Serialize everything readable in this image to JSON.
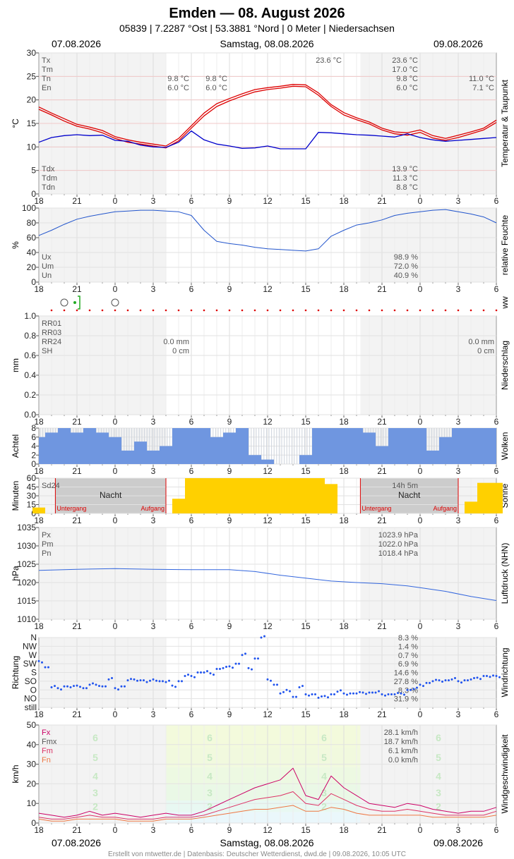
{
  "header": {
    "title": "Emden  —  08. August 2026",
    "subtitle": "05839  |  7.2287 °Ost  |  53.3881 °Nord  |  0 Meter  |  Niedersachsen",
    "date_left": "07.08.2026",
    "date_center": "Samstag, 08.08.2026",
    "date_right": "09.08.2026"
  },
  "footer": "Erstellt von mtwetter.de | Datenbasis: Deutscher Wetterdienst, dwd.de | 09.08.2026, 10:05 UTC",
  "x_axis": {
    "range_hours": [
      18,
      54
    ],
    "tick_labels": [
      "18",
      "21",
      "0",
      "3",
      "6",
      "9",
      "12",
      "15",
      "18",
      "21",
      "0",
      "3",
      "6"
    ]
  },
  "chart_data": [
    {
      "id": "temperature",
      "type": "line",
      "ylabel": "°C",
      "side_label": "Temperatur & Taupunkt",
      "ylim": [
        0,
        30
      ],
      "yticks": [
        0,
        5,
        10,
        15,
        20,
        25,
        30
      ],
      "stats_top": [
        {
          "label": "Tx",
          "right": "23.6 °C"
        },
        {
          "label": "Tm",
          "right": "17.0 °C"
        },
        {
          "label": "Tn",
          "mid1": "9.8 °C",
          "mid2": "9.8 °C",
          "right": "9.8 °C",
          "far": "11.0 °C"
        },
        {
          "label": "En",
          "mid1": "6.0 °C",
          "mid2": "6.0 °C",
          "right": "6.0 °C",
          "far": "7.1 °C"
        }
      ],
      "peak_label": "23.6 °C",
      "stats_bottom": [
        {
          "label": "Tdx",
          "right": "13.9 °C"
        },
        {
          "label": "Tdm",
          "right": "11.3 °C"
        },
        {
          "label": "Tdn",
          "right": "8.8 °C"
        }
      ],
      "series": [
        {
          "name": "Tx",
          "color": "#dd0000",
          "x": [
            18,
            19,
            20,
            21,
            22,
            23,
            24,
            25,
            26,
            27,
            28,
            29,
            30,
            31,
            32,
            33,
            34,
            35,
            36,
            37,
            38,
            39,
            40,
            41,
            42,
            43,
            44,
            45,
            46,
            47,
            48,
            49,
            50,
            51,
            52,
            53,
            54
          ],
          "values": [
            18.5,
            17.2,
            16.0,
            14.8,
            14.2,
            13.5,
            12.2,
            11.5,
            11.0,
            10.6,
            10.2,
            11.8,
            14.5,
            17.2,
            19.2,
            20.3,
            21.3,
            22.2,
            22.6,
            22.9,
            23.3,
            23.2,
            21.5,
            19.0,
            17.3,
            16.2,
            15.3,
            14.0,
            13.2,
            13.0,
            13.6,
            12.4,
            11.8,
            12.5,
            13.2,
            14.0,
            15.7
          ]
        },
        {
          "name": "Tm",
          "color": "#dd0000",
          "x": [
            18,
            19,
            20,
            21,
            22,
            23,
            24,
            25,
            26,
            27,
            28,
            29,
            30,
            31,
            32,
            33,
            34,
            35,
            36,
            37,
            38,
            39,
            40,
            41,
            42,
            43,
            44,
            45,
            46,
            47,
            48,
            49,
            50,
            51,
            52,
            53,
            54
          ],
          "values": [
            18.0,
            16.8,
            15.5,
            14.4,
            13.8,
            13.0,
            11.8,
            11.0,
            10.6,
            10.2,
            9.8,
            11.3,
            14.0,
            16.6,
            18.6,
            19.8,
            20.8,
            21.7,
            22.2,
            22.5,
            22.9,
            22.8,
            21.0,
            18.6,
            16.8,
            15.8,
            14.9,
            13.6,
            12.8,
            12.5,
            13.1,
            11.9,
            11.4,
            12.0,
            12.8,
            13.6,
            15.2
          ]
        },
        {
          "name": "Td",
          "color": "#0000cc",
          "x": [
            18,
            19,
            20,
            21,
            22,
            23,
            24,
            25,
            26,
            27,
            28,
            29,
            30,
            31,
            32,
            33,
            34,
            35,
            36,
            37,
            38,
            39,
            40,
            41,
            42,
            43,
            44,
            45,
            46,
            47,
            48,
            49,
            50,
            51,
            52,
            53,
            54
          ],
          "values": [
            11.0,
            12.0,
            12.4,
            12.6,
            12.4,
            12.5,
            11.4,
            11.2,
            10.4,
            10.0,
            9.9,
            11.0,
            13.4,
            11.5,
            10.6,
            10.2,
            9.7,
            9.8,
            10.2,
            9.6,
            9.6,
            9.6,
            13.1,
            13.0,
            12.8,
            12.6,
            12.5,
            12.3,
            12.1,
            12.8,
            12.0,
            11.5,
            11.2,
            11.4,
            11.6,
            11.8,
            12.0
          ]
        }
      ]
    },
    {
      "id": "humidity",
      "type": "line",
      "ylabel": "%",
      "side_label": "relative Feuchte",
      "ylim": [
        0,
        100
      ],
      "yticks": [
        0,
        20,
        40,
        60,
        80,
        100
      ],
      "stats": [
        {
          "label": "Ux",
          "right": "98.9 %"
        },
        {
          "label": "Um",
          "right": "72.0 %"
        },
        {
          "label": "Un",
          "right": "40.9 %"
        }
      ],
      "series": [
        {
          "name": "U",
          "color": "#2255cc",
          "x": [
            18,
            19,
            20,
            21,
            22,
            23,
            24,
            25,
            26,
            27,
            28,
            29,
            30,
            31,
            32,
            33,
            34,
            35,
            36,
            37,
            38,
            39,
            40,
            41,
            42,
            43,
            44,
            45,
            46,
            47,
            48,
            49,
            50,
            51,
            52,
            53,
            54
          ],
          "values": [
            63,
            70,
            78,
            85,
            89,
            92,
            95,
            96,
            97,
            97,
            96,
            95,
            90,
            70,
            55,
            52,
            50,
            47,
            45,
            44,
            43,
            42,
            45,
            62,
            70,
            77,
            80,
            84,
            90,
            93,
            95,
            97,
            98,
            95,
            92,
            88,
            80
          ]
        }
      ]
    },
    {
      "id": "ww",
      "type": "scatter",
      "side_label": "ww"
    },
    {
      "id": "precipitation",
      "type": "bar",
      "ylabel": "mm",
      "side_label": "Niederschlag",
      "ylim": [
        0,
        1.0
      ],
      "yticks": [
        "0.0",
        "0.2",
        "0.4",
        "0.6",
        "0.8",
        "1.0"
      ],
      "stats": [
        {
          "label": "RR01"
        },
        {
          "label": "RR03"
        },
        {
          "label": "RR24",
          "mid": "0.0 mm",
          "right": "0.0 mm"
        },
        {
          "label": "SH",
          "mid": "0 cm",
          "right": "0 cm"
        }
      ],
      "values": []
    },
    {
      "id": "clouds",
      "type": "bar",
      "ylabel": "Achtel",
      "side_label": "Wolken",
      "ylim": [
        0,
        8
      ],
      "yticks": [
        0,
        2,
        4,
        6,
        8
      ],
      "x": [
        18,
        19,
        20,
        21,
        22,
        23,
        24,
        25,
        26,
        27,
        28,
        29,
        30,
        31,
        32,
        33,
        34,
        35,
        36,
        37,
        38,
        39,
        40,
        41,
        42,
        43,
        44,
        45,
        46,
        47,
        48,
        49,
        50,
        51,
        52,
        53,
        54
      ],
      "values": [
        6,
        7,
        8,
        7,
        8,
        7,
        6,
        3,
        5,
        3,
        4,
        8,
        8,
        8,
        6,
        7,
        8,
        2,
        1,
        0,
        0,
        2,
        8,
        8,
        8,
        8,
        7,
        4,
        8,
        8,
        8,
        3,
        6,
        8,
        8,
        8,
        8
      ]
    },
    {
      "id": "sunshine",
      "type": "bar",
      "ylabel": "Minuten",
      "side_label": "Sonne",
      "ylim": [
        0,
        60
      ],
      "yticks": [
        0,
        15,
        30,
        45,
        60
      ],
      "stats_label": "Sd24",
      "total": "14h 5m",
      "night_label": "Nacht",
      "sunset_label": "Untergang",
      "sunrise_label": "Aufgang",
      "events": {
        "sunset": [
          19.3,
          43.3
        ],
        "sunrise": [
          28.0,
          51.0
        ]
      },
      "x": [
        18,
        19,
        20,
        21,
        22,
        23,
        24,
        25,
        26,
        27,
        28,
        29,
        30,
        31,
        32,
        33,
        34,
        35,
        36,
        37,
        38,
        39,
        40,
        41,
        42,
        43,
        44,
        45,
        46,
        47,
        48,
        49,
        50,
        51,
        52,
        53,
        54
      ],
      "values": [
        10,
        0,
        0,
        0,
        0,
        0,
        0,
        0,
        0,
        0,
        0,
        25,
        60,
        60,
        60,
        60,
        60,
        60,
        60,
        60,
        60,
        60,
        60,
        50,
        0,
        0,
        0,
        0,
        0,
        0,
        0,
        0,
        0,
        0,
        20,
        52,
        52
      ]
    },
    {
      "id": "pressure",
      "type": "line",
      "ylabel": "hPa",
      "side_label": "Luftdruck (NHN)",
      "ylim": [
        1010,
        1035
      ],
      "yticks": [
        1010,
        1015,
        1020,
        1025,
        1030,
        1035
      ],
      "stats": [
        {
          "label": "Px",
          "right": "1023.9 hPa"
        },
        {
          "label": "Pm",
          "right": "1022.0 hPa"
        },
        {
          "label": "Pn",
          "right": "1018.4 hPa"
        }
      ],
      "series": [
        {
          "name": "P",
          "color": "#3366dd",
          "x": [
            18,
            21,
            24,
            27,
            30,
            33,
            35,
            37,
            39,
            41,
            43,
            45,
            47,
            48,
            50,
            52,
            54
          ],
          "values": [
            1023.3,
            1023.6,
            1023.8,
            1023.6,
            1023.5,
            1023.5,
            1023.0,
            1022.0,
            1021.2,
            1020.4,
            1020.0,
            1019.7,
            1019.1,
            1018.6,
            1017.6,
            1016.2,
            1015.1
          ]
        }
      ]
    },
    {
      "id": "wind_direction",
      "type": "scatter",
      "ylabel": "Richtung",
      "side_label": "Windrichtung",
      "yticks": [
        "still",
        "NO",
        "O",
        "SO",
        "S",
        "SW",
        "W",
        "NW",
        "N"
      ],
      "stats": [
        "8.3 %",
        "1.4 %",
        "0.7 %",
        "6.9 %",
        "14.6 %",
        "27.8 %",
        "8.3 %",
        "31.9 %"
      ],
      "x": [
        18,
        18.5,
        19,
        19.5,
        20,
        20.5,
        21,
        21.5,
        22,
        22.5,
        23,
        23.5,
        24,
        24.5,
        25,
        25.5,
        26,
        26.5,
        27,
        27.5,
        28,
        28.5,
        29,
        29.5,
        30,
        30.5,
        31,
        31.5,
        32,
        32.5,
        33,
        33.5,
        34,
        34.5,
        35,
        35.5,
        36,
        36.5,
        37,
        37.5,
        38,
        38.5,
        39,
        39.5,
        40,
        40.5,
        41,
        41.5,
        42,
        42.5,
        43,
        43.5,
        44,
        44.5,
        45,
        45.5,
        46,
        46.5,
        47,
        47.5,
        48,
        48.5,
        49,
        49.5,
        50,
        50.5,
        51,
        51.5,
        52,
        52.5,
        53,
        53.5,
        54
      ],
      "values": [
        5.3,
        4.6,
        2.3,
        2.2,
        2.4,
        2.3,
        2.5,
        2.2,
        2.6,
        2.6,
        2.4,
        3.2,
        2.2,
        2.4,
        3.1,
        3.2,
        3.1,
        2.9,
        3.2,
        3.0,
        2.9,
        2.5,
        3.0,
        3.6,
        3.6,
        4.0,
        4.0,
        3.9,
        4.4,
        4.5,
        4.7,
        5.0,
        6.0,
        4.5,
        5.6,
        8.0,
        3.2,
        2.6,
        1.6,
        2.0,
        1.2,
        2.3,
        1.5,
        1.5,
        1.1,
        1.3,
        1.5,
        1.8,
        1.6,
        1.6,
        1.6,
        1.7,
        1.7,
        1.7,
        1.5,
        1.5,
        1.5,
        1.6,
        2.0,
        2.1,
        2.6,
        2.8,
        3.0,
        3.1,
        3.1,
        3.2,
        3.0,
        3.1,
        3.2,
        3.4,
        3.6,
        3.5,
        3.6
      ]
    },
    {
      "id": "wind_speed",
      "type": "line",
      "ylabel": "km/h",
      "side_label": "Windgeschwindigkeit",
      "ylim": [
        0,
        50
      ],
      "yticks": [
        0,
        10,
        20,
        30,
        40,
        50
      ],
      "beaufort_labels": [
        "2",
        "3",
        "4",
        "5",
        "6"
      ],
      "stats": [
        {
          "label": "Fx",
          "right": "28.1 km/h"
        },
        {
          "label": "Fmx",
          "right": "18.7 km/h"
        },
        {
          "label": "Fm",
          "right": "6.1 km/h"
        },
        {
          "label": "Fn",
          "right": "0.0 km/h"
        }
      ],
      "series": [
        {
          "name": "Fx",
          "color": "#cc0066",
          "x": [
            18,
            19,
            20,
            21,
            22,
            23,
            24,
            25,
            26,
            27,
            28,
            29,
            30,
            31,
            32,
            33,
            34,
            35,
            36,
            37,
            38,
            39,
            40,
            41,
            42,
            43,
            44,
            45,
            46,
            47,
            48,
            49,
            50,
            51,
            52,
            53,
            54
          ],
          "values": [
            5,
            4,
            3,
            4,
            6,
            4,
            5,
            4,
            3,
            4,
            5,
            4,
            4,
            6,
            9,
            12,
            15,
            18,
            20,
            22,
            28,
            14,
            12,
            24,
            18,
            14,
            10,
            9,
            8,
            10,
            9,
            7,
            6,
            5,
            6,
            6,
            8
          ]
        },
        {
          "name": "Fmx",
          "color": "#dd3366",
          "x": [
            18,
            19,
            20,
            21,
            22,
            23,
            24,
            25,
            26,
            27,
            28,
            29,
            30,
            31,
            32,
            33,
            34,
            35,
            36,
            37,
            38,
            39,
            40,
            41,
            42,
            43,
            44,
            45,
            46,
            47,
            48,
            49,
            50,
            51,
            52,
            53,
            54
          ],
          "values": [
            3,
            2,
            2,
            3,
            4,
            3,
            3,
            2,
            2,
            2,
            3,
            3,
            3,
            4,
            6,
            8,
            10,
            12,
            13,
            14,
            16,
            10,
            9,
            15,
            12,
            9,
            7,
            6,
            6,
            7,
            6,
            5,
            4,
            4,
            4,
            4,
            6
          ]
        },
        {
          "name": "Fm",
          "color": "#ee7744",
          "x": [
            18,
            19,
            20,
            21,
            22,
            23,
            24,
            25,
            26,
            27,
            28,
            29,
            30,
            31,
            32,
            33,
            34,
            35,
            36,
            37,
            38,
            39,
            40,
            41,
            42,
            43,
            44,
            45,
            46,
            47,
            48,
            49,
            50,
            51,
            52,
            53,
            54
          ],
          "values": [
            2,
            1,
            1,
            2,
            2,
            2,
            2,
            1,
            1,
            1,
            2,
            2,
            2,
            3,
            4,
            5,
            6,
            7,
            7,
            8,
            9,
            6,
            6,
            8,
            7,
            5,
            4,
            4,
            4,
            4,
            4,
            3,
            3,
            3,
            3,
            3,
            4
          ]
        }
      ]
    }
  ]
}
